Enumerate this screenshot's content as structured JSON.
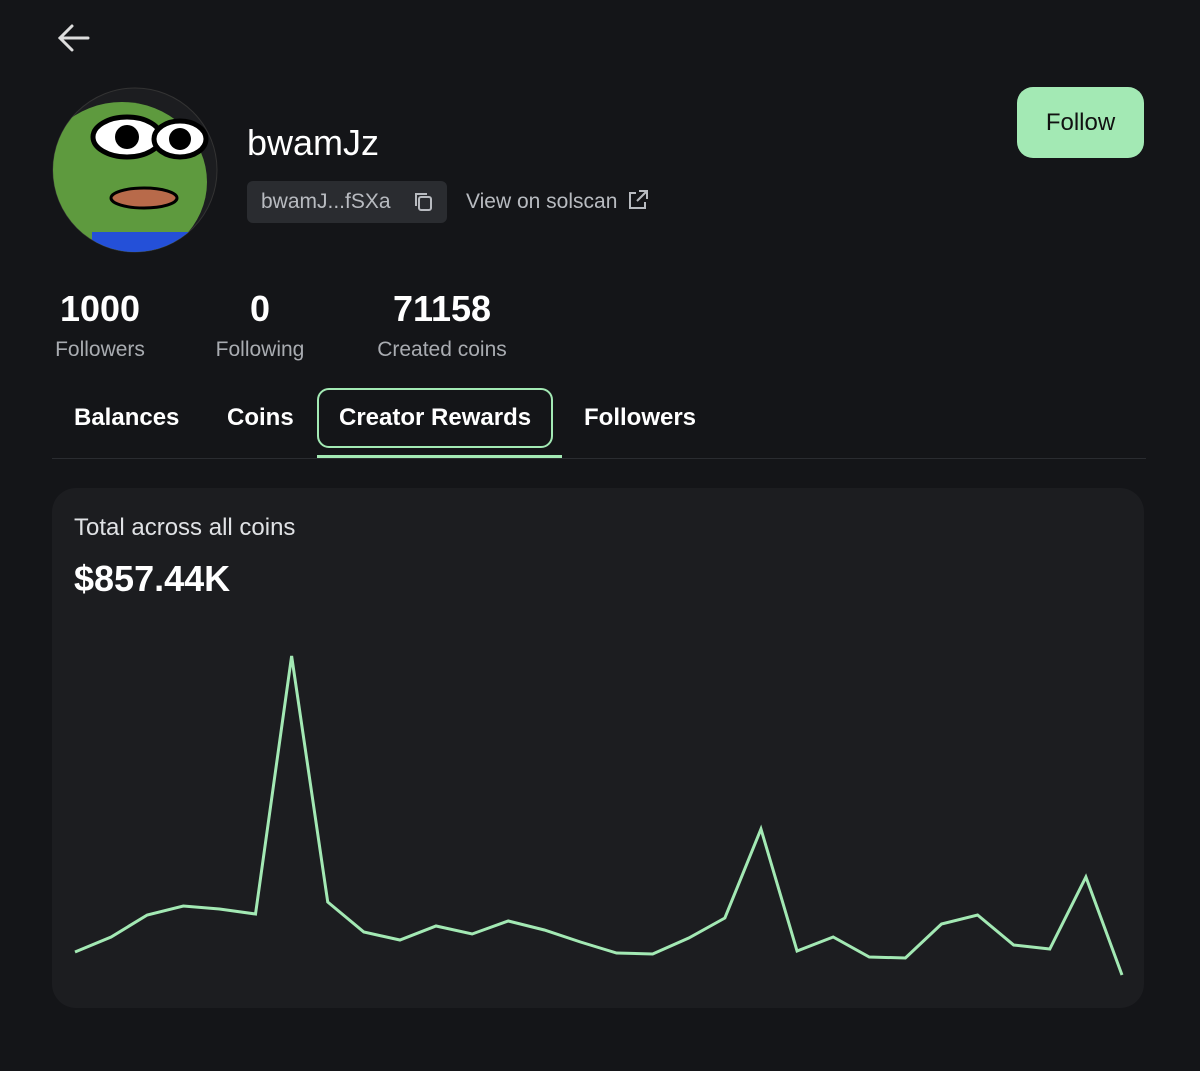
{
  "header": {
    "username": "bwamJz",
    "address": "bwamJ...fSXa",
    "solscan_link": "View on solscan",
    "follow_button": "Follow"
  },
  "stats": [
    {
      "value": 1000,
      "label": "Followers"
    },
    {
      "value": 0,
      "label": "Following"
    },
    {
      "value": 71158,
      "label": "Created coins"
    }
  ],
  "tabs": [
    "Balances",
    "Coins",
    "Creator Rewards",
    "Followers"
  ],
  "active_tab": 2,
  "rewards": {
    "label": "Total across all coins",
    "total": "$857.44K",
    "chart_data": {
      "type": "line",
      "color": "#a3e9b4",
      "values": [
        28,
        43,
        65,
        74,
        71,
        66,
        324,
        78,
        48,
        40,
        54,
        46,
        59,
        50,
        38,
        27,
        26,
        42,
        62,
        151,
        29,
        43,
        23,
        22,
        56,
        65,
        35,
        31,
        103,
        5
      ]
    }
  }
}
